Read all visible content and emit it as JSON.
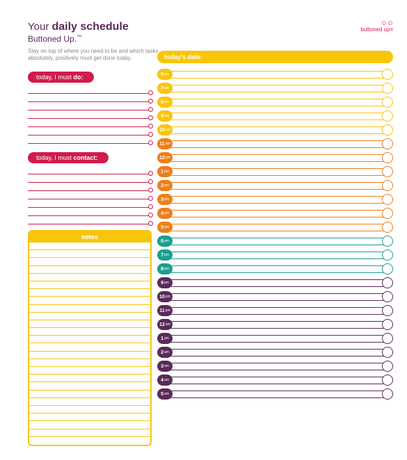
{
  "colors": {
    "magenta": "#d11c4b",
    "yellow": "#f9c50a",
    "orange": "#ee7f1a",
    "teal": "#1a9e8f",
    "purple": "#5a2a5a",
    "grey": "#888888"
  },
  "brand": {
    "name": "buttoned up",
    "icons": "☺☺"
  },
  "title": {
    "line1_pre": "Your ",
    "line1_bold": "daily schedule",
    "line2": "Buttoned Up.",
    "tm": "™"
  },
  "tagline": "Stay on top of where you need to be and which tasks absolutely, positively must get done today.",
  "date_label": "today's date:",
  "sections": {
    "do_pre": "today, I must ",
    "do_bold": "do:",
    "contact_pre": "today, I must ",
    "contact_bold": "contact:",
    "notes": "notes"
  },
  "do_lines": 7,
  "contact_lines": 7,
  "notes_lines": 26,
  "schedule": [
    {
      "h": "6",
      "ap": "am",
      "color": "#f9c50a"
    },
    {
      "h": "7",
      "ap": "am",
      "color": "#f9c50a"
    },
    {
      "h": "8",
      "ap": "am",
      "color": "#f9c50a"
    },
    {
      "h": "9",
      "ap": "am",
      "color": "#f9c50a"
    },
    {
      "h": "10",
      "ap": "am",
      "color": "#f9c50a"
    },
    {
      "h": "11",
      "ap": "am",
      "color": "#ee7f1a"
    },
    {
      "h": "12",
      "ap": "pm",
      "color": "#ee7f1a"
    },
    {
      "h": "1",
      "ap": "pm",
      "color": "#ee7f1a"
    },
    {
      "h": "2",
      "ap": "pm",
      "color": "#ee7f1a"
    },
    {
      "h": "3",
      "ap": "pm",
      "color": "#ee7f1a"
    },
    {
      "h": "4",
      "ap": "pm",
      "color": "#ee7f1a"
    },
    {
      "h": "5",
      "ap": "pm",
      "color": "#ee7f1a"
    },
    {
      "h": "6",
      "ap": "pm",
      "color": "#1a9e8f"
    },
    {
      "h": "7",
      "ap": "pm",
      "color": "#1a9e8f"
    },
    {
      "h": "8",
      "ap": "pm",
      "color": "#1a9e8f"
    },
    {
      "h": "9",
      "ap": "pm",
      "color": "#5a2a5a"
    },
    {
      "h": "10",
      "ap": "pm",
      "color": "#5a2a5a"
    },
    {
      "h": "11",
      "ap": "pm",
      "color": "#5a2a5a"
    },
    {
      "h": "12",
      "ap": "am",
      "color": "#5a2a5a"
    },
    {
      "h": "1",
      "ap": "am",
      "color": "#5a2a5a"
    },
    {
      "h": "2",
      "ap": "am",
      "color": "#5a2a5a"
    },
    {
      "h": "3",
      "ap": "am",
      "color": "#5a2a5a"
    },
    {
      "h": "4",
      "ap": "am",
      "color": "#5a2a5a"
    },
    {
      "h": "5",
      "ap": "am",
      "color": "#5a2a5a"
    }
  ]
}
